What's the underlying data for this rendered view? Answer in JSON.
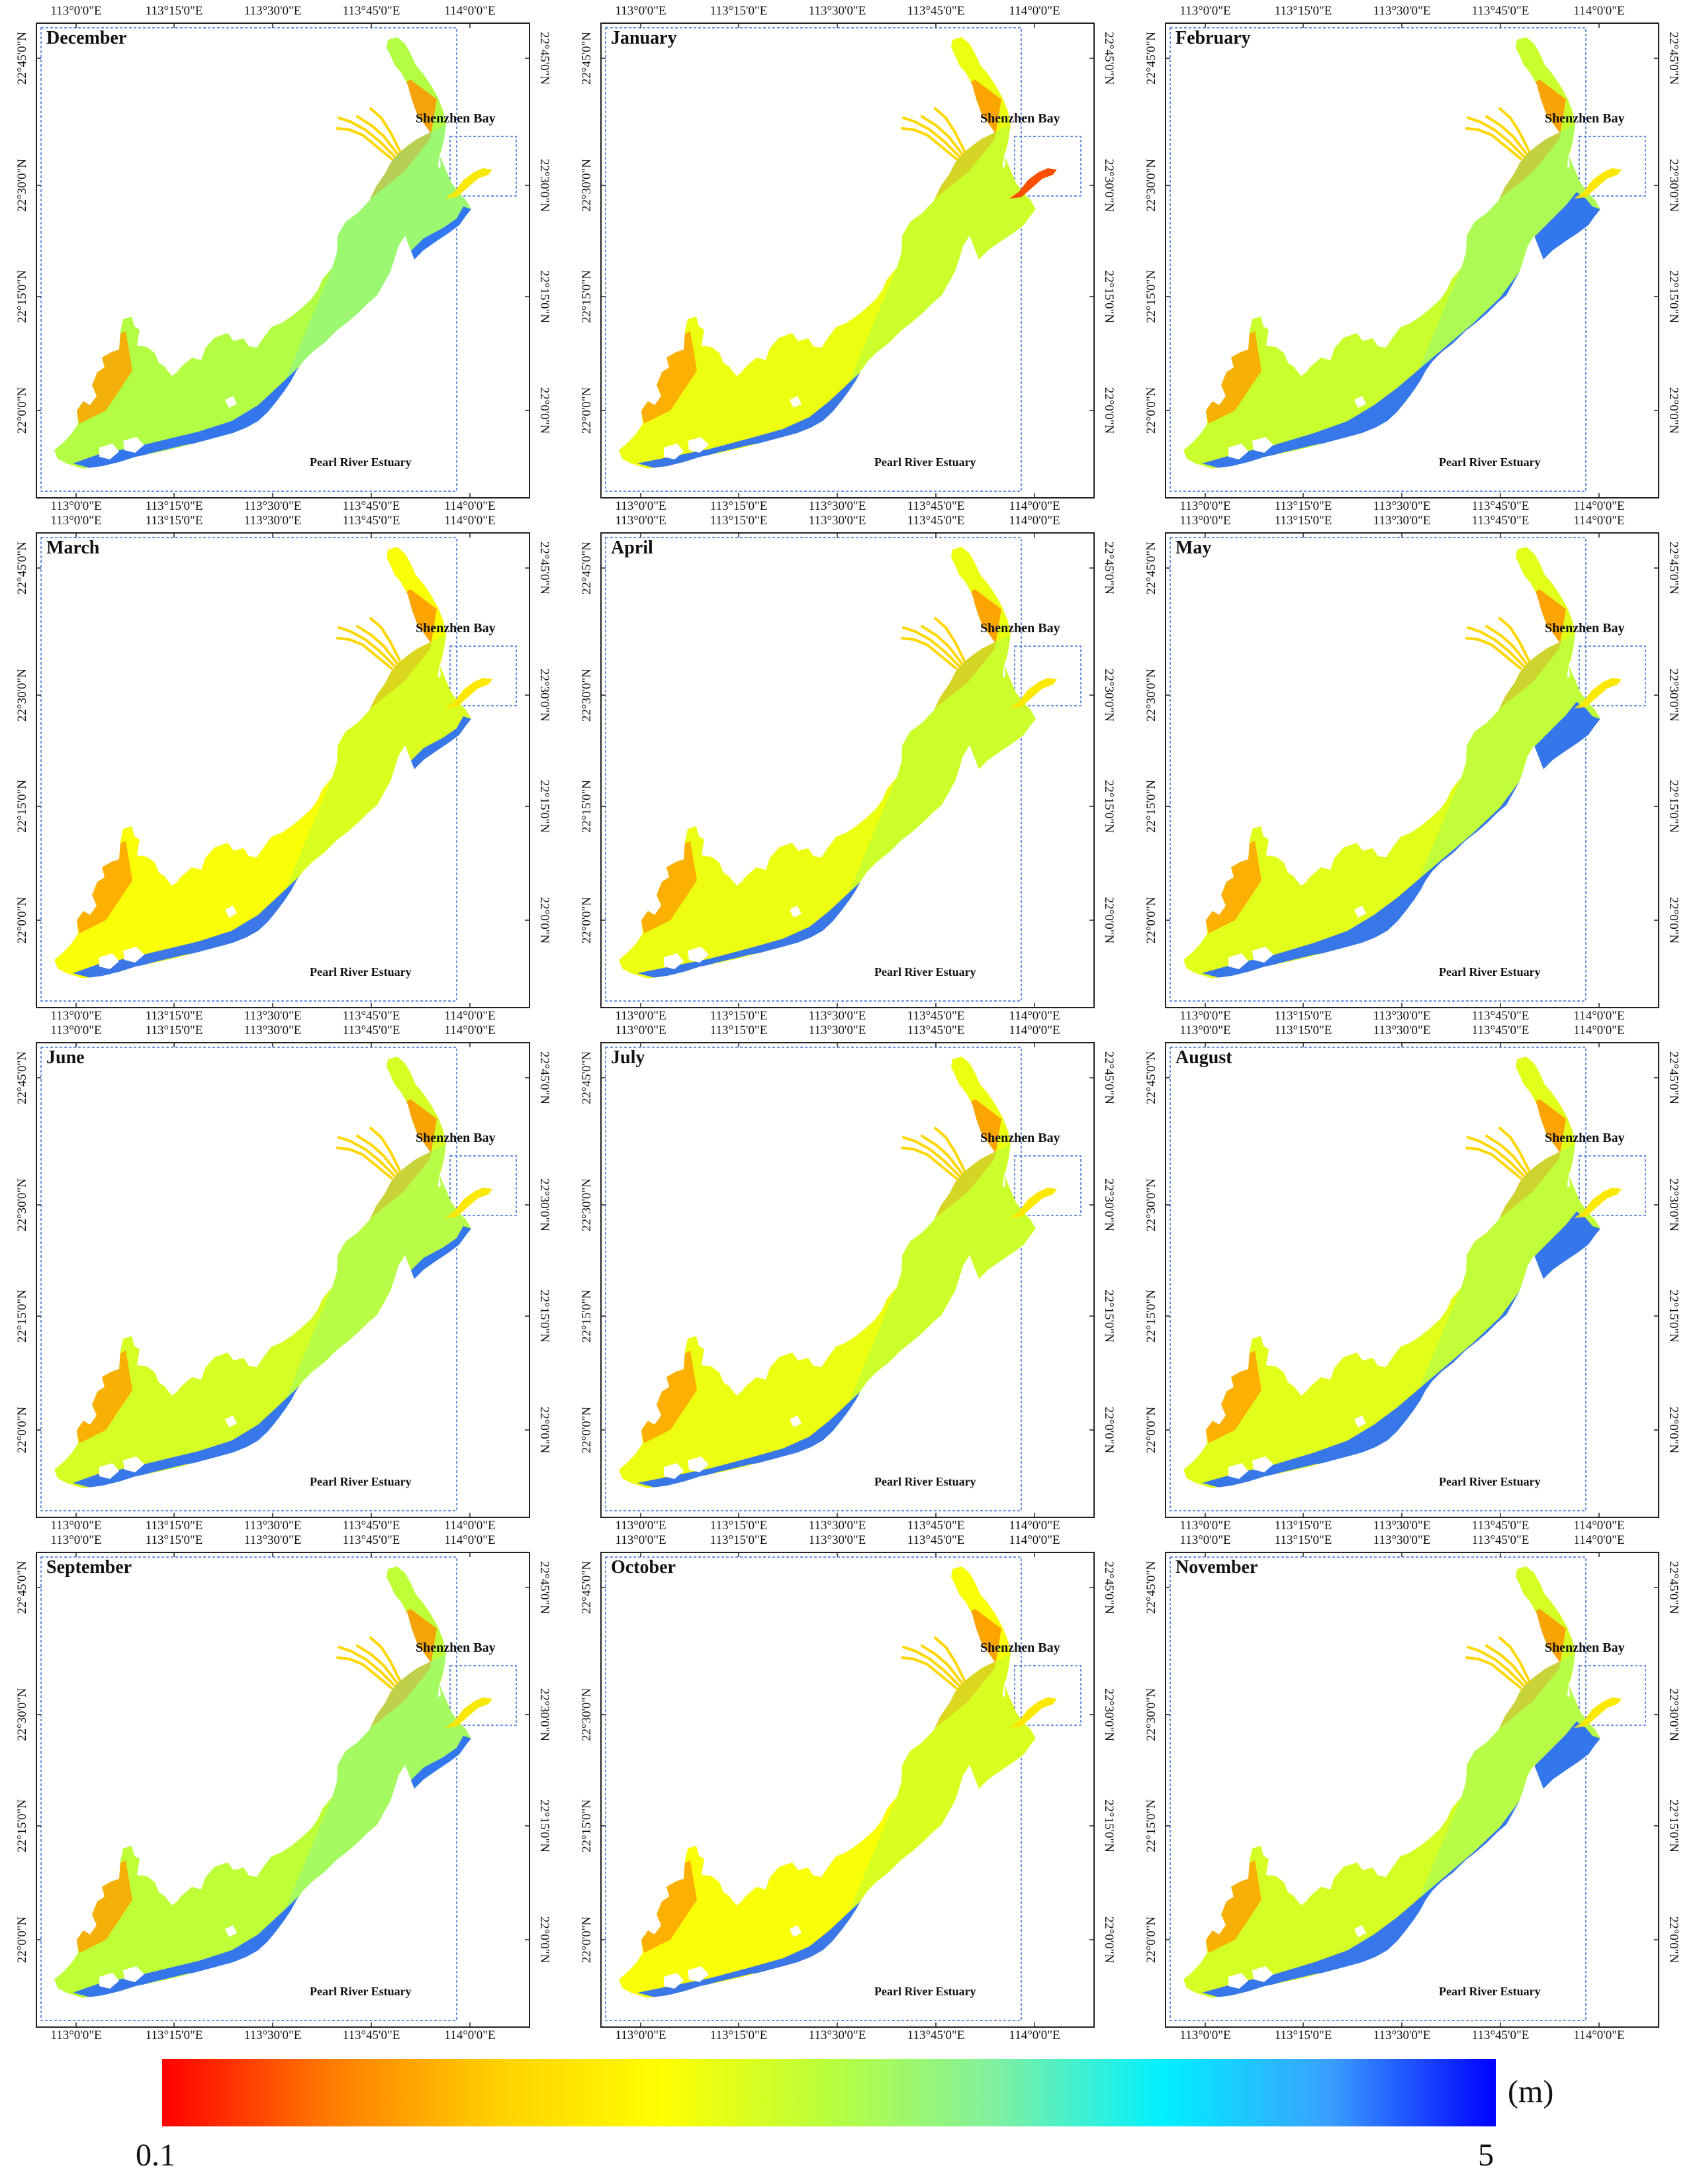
{
  "figure": {
    "panels": [
      {
        "month": "December",
        "dominant_depth_m": 2.6
      },
      {
        "month": "January",
        "dominant_depth_m": 2.1
      },
      {
        "month": "February",
        "dominant_depth_m": 2.4
      },
      {
        "month": "March",
        "dominant_depth_m": 2.0
      },
      {
        "month": "April",
        "dominant_depth_m": 2.1
      },
      {
        "month": "May",
        "dominant_depth_m": 2.2
      },
      {
        "month": "June",
        "dominant_depth_m": 2.3
      },
      {
        "month": "July",
        "dominant_depth_m": 2.1
      },
      {
        "month": "August",
        "dominant_depth_m": 2.2
      },
      {
        "month": "September",
        "dominant_depth_m": 2.5
      },
      {
        "month": "October",
        "dominant_depth_m": 2.0
      },
      {
        "month": "November",
        "dominant_depth_m": 2.3
      }
    ],
    "inset_label": "Shenzhen Bay",
    "region_label": "Pearl River Estuary",
    "lon_ticks": [
      "113°0'0\"E",
      "113°15'0\"E",
      "113°30'0\"E",
      "113°45'0\"E",
      "114°0'0\"E"
    ],
    "lat_ticks": [
      "22°45'0\"N",
      "22°30'0\"N",
      "22°15'0\"N",
      "22°0'0\"N"
    ]
  },
  "legend": {
    "min_label": "0.1",
    "max_label": "5",
    "unit": "(m)",
    "colors": [
      "#ff0000",
      "#ff7a00",
      "#ffd000",
      "#ffff00",
      "#b8ff3c",
      "#80f0a0",
      "#00f0ff",
      "#3aa0ff",
      "#0000ff"
    ]
  }
}
